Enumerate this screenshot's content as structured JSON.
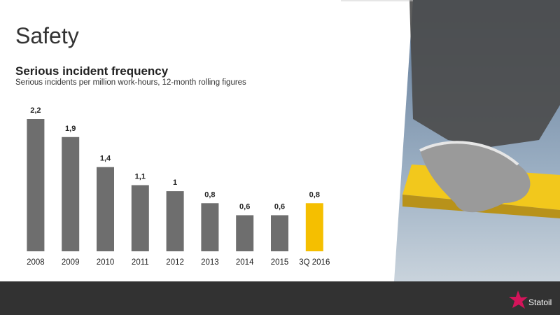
{
  "slide_title": "Safety",
  "chart_data": {
    "type": "bar",
    "title": "Serious incident frequency",
    "subtitle": "Serious incidents per million work-hours, 12-month rolling figures",
    "categories": [
      "2008",
      "2009",
      "2010",
      "2011",
      "2012",
      "2013",
      "2014",
      "2015",
      "3Q 2016"
    ],
    "values": [
      2.2,
      1.9,
      1.4,
      1.1,
      1,
      0.8,
      0.6,
      0.6,
      0.8
    ],
    "value_labels": [
      "2,2",
      "1,9",
      "1,4",
      "1,1",
      "1",
      "0,8",
      "0,6",
      "0,6",
      "0,8"
    ],
    "colors": [
      "#6e6e6e",
      "#6e6e6e",
      "#6e6e6e",
      "#6e6e6e",
      "#6e6e6e",
      "#6e6e6e",
      "#6e6e6e",
      "#6e6e6e",
      "#f5bf00"
    ]
  },
  "logo": "Statoil"
}
